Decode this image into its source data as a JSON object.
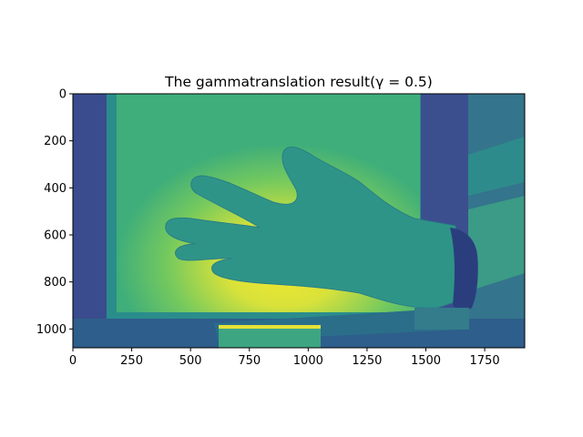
{
  "chart_data": {
    "type": "heatmap",
    "title": "The gammatranslation result(γ = 0.5)",
    "xlabel": "",
    "ylabel": "",
    "image_size": [
      1920,
      1080
    ],
    "xlim": [
      0,
      1920
    ],
    "ylim": [
      1080,
      0
    ],
    "x_ticks": [
      0,
      250,
      500,
      750,
      1000,
      1250,
      1500,
      1750
    ],
    "y_ticks": [
      0,
      200,
      400,
      600,
      800,
      1000
    ],
    "colormap": "viridis",
    "content": "false-color image of a hand in front of a bright light box",
    "grid": false
  },
  "colors": {
    "background": "#ffffff",
    "dark": "#3b4a8c",
    "teal": "#2a8a8c",
    "green": "#3fae7a",
    "bright": "#7ccf5c",
    "yellow": "#f0e633"
  }
}
